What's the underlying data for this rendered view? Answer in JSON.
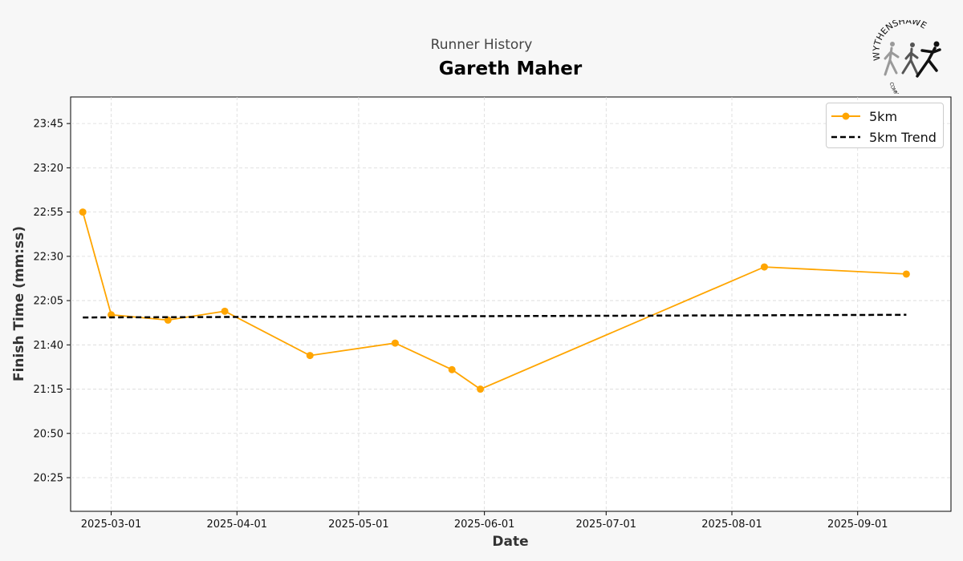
{
  "header": {
    "subtitle": "Runner History",
    "title": "Gareth Maher"
  },
  "logo": {
    "text_top": "WYTHENSHAWE",
    "text_bottom": "COMMUNITY RUN"
  },
  "chart_data": {
    "type": "line",
    "title": "Gareth Maher",
    "subtitle": "Runner History",
    "xlabel": "Date",
    "ylabel": "Finish Time (mm:ss)",
    "x_range": [
      "2025-02-19",
      "2025-09-24"
    ],
    "y_range_seconds": [
      1206,
      1440
    ],
    "x_ticks": [
      "2025-03-01",
      "2025-04-01",
      "2025-05-01",
      "2025-06-01",
      "2025-07-01",
      "2025-08-01",
      "2025-09-01"
    ],
    "y_ticks": [
      "20:25",
      "20:50",
      "21:15",
      "21:40",
      "22:05",
      "22:30",
      "22:55",
      "23:20",
      "23:45"
    ],
    "grid": true,
    "legend_position": "top-right",
    "series": [
      {
        "name": "5km",
        "color": "#ffa500",
        "style": "solid-marker",
        "points": [
          {
            "date": "2025-02-22",
            "time": "22:55"
          },
          {
            "date": "2025-03-01",
            "time": "21:57"
          },
          {
            "date": "2025-03-15",
            "time": "21:54"
          },
          {
            "date": "2025-03-29",
            "time": "21:59"
          },
          {
            "date": "2025-04-19",
            "time": "21:34"
          },
          {
            "date": "2025-05-10",
            "time": "21:41"
          },
          {
            "date": "2025-05-24",
            "time": "21:26"
          },
          {
            "date": "2025-05-31",
            "time": "21:15"
          },
          {
            "date": "2025-08-09",
            "time": "22:24"
          },
          {
            "date": "2025-09-13",
            "time": "22:20"
          }
        ]
      },
      {
        "name": "5km Trend",
        "color": "#000000",
        "style": "dashed",
        "points": [
          {
            "date": "2025-02-22",
            "time": "21:55.5"
          },
          {
            "date": "2025-09-13",
            "time": "21:57"
          }
        ]
      }
    ]
  }
}
